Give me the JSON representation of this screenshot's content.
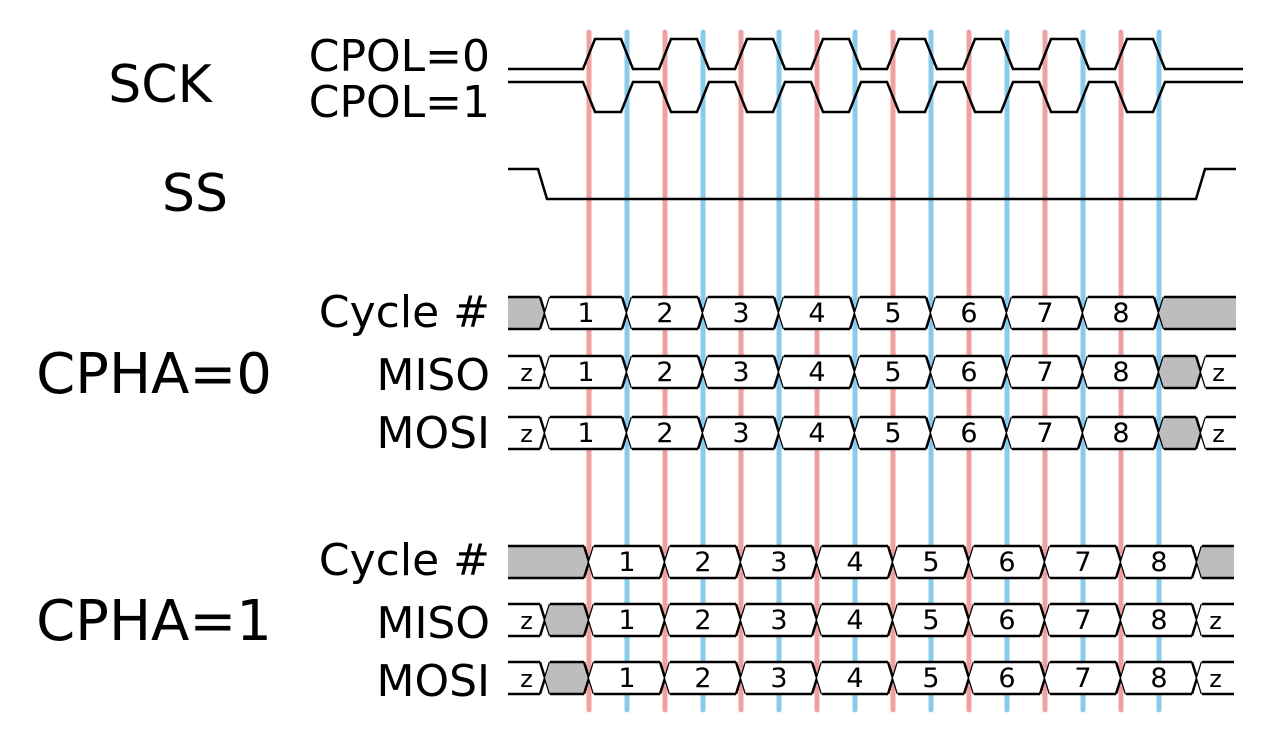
{
  "labels": {
    "sck": "SCK",
    "cpol0": "CPOL=0",
    "cpol1": "CPOL=1",
    "ss": "SS",
    "cpha0": "CPHA=0",
    "cpha1": "CPHA=1",
    "cycle": "Cycle #",
    "miso": "MISO",
    "mosi": "MOSI"
  },
  "cycles": [
    "1",
    "2",
    "3",
    "4",
    "5",
    "6",
    "7",
    "8"
  ],
  "hiz_label": "z",
  "colors": {
    "leading_edge": "#f0a0a0",
    "trailing_edge": "#88cbec",
    "undefined_fill": "#bdbdbd",
    "signal": "#000000"
  }
}
